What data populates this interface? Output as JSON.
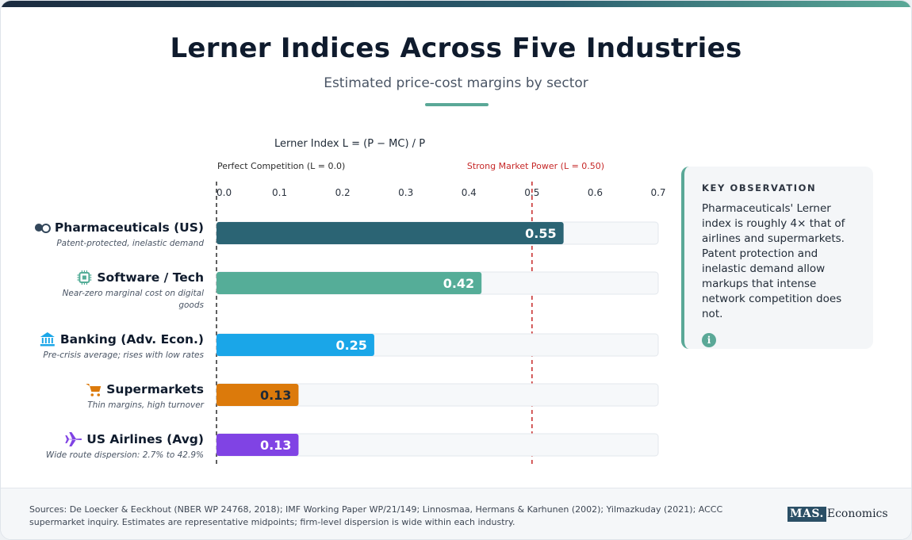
{
  "title": "Lerner Indices Across Five Industries",
  "subtitle": "Estimated price-cost margins by sector",
  "chart_data": {
    "type": "bar",
    "orientation": "horizontal",
    "axis_title": "Lerner Index L = (P − MC) / P",
    "xlim": [
      0,
      0.7
    ],
    "ticks": [
      "0.0",
      "0.1",
      "0.2",
      "0.3",
      "0.4",
      "0.5",
      "0.6",
      "0.7"
    ],
    "tick_values": [
      0,
      0.1,
      0.2,
      0.3,
      0.4,
      0.5,
      0.6,
      0.7
    ],
    "reference_lines": [
      {
        "value": 0.0,
        "label": "Perfect Competition (L = 0.0)",
        "color": "#2b2b2b"
      },
      {
        "value": 0.5,
        "label": "Strong Market Power (L = 0.50)",
        "color": "#c62828"
      }
    ],
    "categories": [
      {
        "label": "Pharmaceuticals (US)",
        "note_lines": [
          "Patent-protected, inelastic demand"
        ],
        "value": 0.55,
        "value_label": "0.55",
        "color": "#2b6474",
        "icon": "pills-icon",
        "label_color": "#ffffff"
      },
      {
        "label": "Software / Tech",
        "note_lines": [
          "Near-zero marginal cost on digital",
          "goods"
        ],
        "value": 0.42,
        "value_label": "0.42",
        "color": "#55ad98",
        "icon": "chip-icon",
        "label_color": "#ffffff"
      },
      {
        "label": "Banking (Adv. Econ.)",
        "note_lines": [
          "Pre-crisis average; rises with low rates"
        ],
        "value": 0.25,
        "value_label": "0.25",
        "color": "#1aa6e8",
        "icon": "bank-icon",
        "label_color": "#ffffff"
      },
      {
        "label": "Supermarkets",
        "note_lines": [
          "Thin margins, high turnover"
        ],
        "value": 0.13,
        "value_label": "0.13",
        "color": "#dc7a0b",
        "icon": "cart-icon",
        "label_color": "#1f2a37"
      },
      {
        "label": "US Airlines (Avg)",
        "note_lines": [
          "Wide route dispersion: 2.7% to 42.9%"
        ],
        "value": 0.13,
        "value_label": "0.13",
        "color": "#8043e4",
        "icon": "plane-icon",
        "label_color": "#ffffff"
      }
    ]
  },
  "key_observation": {
    "heading": "KEY OBSERVATION",
    "body": "Pharmaceuticals' Lerner index is roughly 4× that of airlines and supermarkets. Patent protection and inelastic demand allow markups that intense network competition does not.",
    "icon": "info-icon",
    "accent": "#5aa897"
  },
  "footer": {
    "sources": "Sources: De Loecker & Eeckhout (NBER WP 24768, 2018); IMF Working Paper WP/21/149; Linnosmaa, Hermans & Karhunen (2002); Yilmazkuday (2021); ACCC supermarket inquiry. Estimates are representative midpoints; firm-level dispersion is wide within each industry.",
    "logo_mark": "MAS.",
    "logo_text": "Economics"
  }
}
